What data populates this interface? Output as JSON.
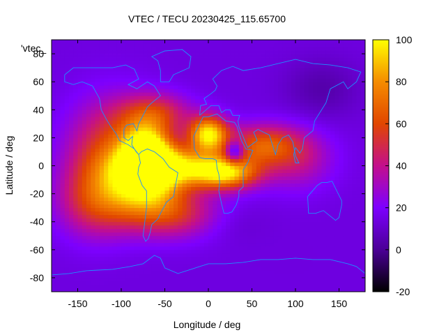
{
  "chart_data": {
    "type": "heatmap",
    "title": "VTEC / TECU 20230425_115.65700",
    "series_label": "'vtec_",
    "xlabel": "Longitude / deg",
    "ylabel": "Latitude / deg",
    "xlim": [
      -180,
      180
    ],
    "ylim": [
      -90,
      90
    ],
    "x_ticks": [
      -150,
      -100,
      -50,
      0,
      50,
      100,
      150
    ],
    "y_ticks": [
      -80,
      -60,
      -40,
      -20,
      0,
      20,
      40,
      60,
      80
    ],
    "x_tick_labels": [
      "-150",
      "-100",
      "-50",
      "0",
      "50",
      "100",
      "150"
    ],
    "y_tick_labels": [
      "-80",
      "-60",
      "-40",
      "-20",
      "0",
      "20",
      "40",
      "60",
      "80"
    ],
    "colorbar": {
      "range": [
        -20,
        100
      ],
      "ticks": [
        -20,
        0,
        20,
        40,
        60,
        80,
        100
      ],
      "tick_labels": [
        "-20",
        "0",
        "20",
        "40",
        "60",
        "80",
        "100"
      ],
      "palette": [
        "#000000",
        "#4b0096",
        "#7d00ff",
        "#c30f8c",
        "#e14600",
        "#f58c00",
        "#ffff00"
      ]
    },
    "background_value": 14,
    "grid": false,
    "vtec_features": [
      {
        "lon": 0,
        "lat": 23,
        "amplitude": 80,
        "sigma_lon": 16,
        "sigma_lat": 9
      },
      {
        "lon": -70,
        "lat": 12,
        "amplitude": 75,
        "sigma_lon": 20,
        "sigma_lat": 13
      },
      {
        "lon": -70,
        "lat": -15,
        "amplitude": 60,
        "sigma_lon": 30,
        "sigma_lat": 14
      },
      {
        "lon": -40,
        "lat": 0,
        "amplitude": 65,
        "sigma_lon": 40,
        "sigma_lat": 10
      },
      {
        "lon": 20,
        "lat": -5,
        "amplitude": 72,
        "sigma_lon": 26,
        "sigma_lat": 8
      },
      {
        "lon": -110,
        "lat": 10,
        "amplitude": 45,
        "sigma_lon": 35,
        "sigma_lat": 25
      },
      {
        "lon": -130,
        "lat": -25,
        "amplitude": 35,
        "sigma_lon": 30,
        "sigma_lat": 18
      },
      {
        "lon": 60,
        "lat": 15,
        "amplitude": 45,
        "sigma_lon": 30,
        "sigma_lat": 10
      },
      {
        "lon": -60,
        "lat": 38,
        "amplitude": 35,
        "sigma_lon": 28,
        "sigma_lat": 10
      },
      {
        "lon": -40,
        "lat": -35,
        "amplitude": 35,
        "sigma_lon": 40,
        "sigma_lat": 12
      },
      {
        "lon": 100,
        "lat": 5,
        "amplitude": 25,
        "sigma_lon": 30,
        "sigma_lat": 15
      },
      {
        "lon": 30,
        "lat": 10,
        "amplitude": -45,
        "sigma_lon": 8,
        "sigma_lat": 6
      },
      {
        "lon": 130,
        "lat": 55,
        "amplitude": -10,
        "sigma_lon": 30,
        "sigma_lat": 15
      },
      {
        "lon": 20,
        "lat": -40,
        "amplitude": -6,
        "sigma_lon": 30,
        "sigma_lat": 10
      }
    ],
    "coastlines": [
      {
        "name": "north-america",
        "points": [
          [
            -165,
            65
          ],
          [
            -155,
            70
          ],
          [
            -140,
            70
          ],
          [
            -125,
            70
          ],
          [
            -110,
            70
          ],
          [
            -95,
            72
          ],
          [
            -85,
            69
          ],
          [
            -80,
            62
          ],
          [
            -92,
            58
          ],
          [
            -82,
            55
          ],
          [
            -70,
            60
          ],
          [
            -62,
            57
          ],
          [
            -55,
            50
          ],
          [
            -65,
            45
          ],
          [
            -70,
            42
          ],
          [
            -75,
            36
          ],
          [
            -80,
            30
          ],
          [
            -82,
            25
          ],
          [
            -86,
            30
          ],
          [
            -94,
            29
          ],
          [
            -97,
            26
          ],
          [
            -97,
            20
          ],
          [
            -92,
            18
          ],
          [
            -87,
            21
          ],
          [
            -88,
            15
          ],
          [
            -83,
            10
          ],
          [
            -80,
            8
          ],
          [
            -85,
            12
          ],
          [
            -92,
            15
          ],
          [
            -102,
            18
          ],
          [
            -106,
            23
          ],
          [
            -112,
            28
          ],
          [
            -117,
            33
          ],
          [
            -123,
            40
          ],
          [
            -125,
            48
          ],
          [
            -133,
            57
          ],
          [
            -145,
            60
          ],
          [
            -155,
            58
          ],
          [
            -165,
            60
          ],
          [
            -165,
            65
          ]
        ]
      },
      {
        "name": "south-america",
        "points": [
          [
            -80,
            8
          ],
          [
            -77,
            10
          ],
          [
            -70,
            12
          ],
          [
            -62,
            10
          ],
          [
            -52,
            5
          ],
          [
            -45,
            -1
          ],
          [
            -35,
            -5
          ],
          [
            -38,
            -15
          ],
          [
            -40,
            -22
          ],
          [
            -48,
            -26
          ],
          [
            -55,
            -34
          ],
          [
            -58,
            -38
          ],
          [
            -65,
            -42
          ],
          [
            -67,
            -48
          ],
          [
            -69,
            -52
          ],
          [
            -72,
            -54
          ],
          [
            -75,
            -50
          ],
          [
            -73,
            -40
          ],
          [
            -71,
            -30
          ],
          [
            -71,
            -18
          ],
          [
            -76,
            -14
          ],
          [
            -81,
            -6
          ],
          [
            -80,
            -1
          ],
          [
            -78,
            2
          ],
          [
            -80,
            8
          ]
        ]
      },
      {
        "name": "greenland",
        "points": [
          [
            -55,
            60
          ],
          [
            -45,
            60
          ],
          [
            -40,
            65
          ],
          [
            -22,
            70
          ],
          [
            -20,
            78
          ],
          [
            -30,
            83
          ],
          [
            -50,
            82
          ],
          [
            -65,
            78
          ],
          [
            -58,
            75
          ],
          [
            -55,
            68
          ],
          [
            -55,
            60
          ]
        ]
      },
      {
        "name": "africa",
        "points": [
          [
            -17,
            21
          ],
          [
            -16,
            12
          ],
          [
            -10,
            6
          ],
          [
            -4,
            5
          ],
          [
            5,
            5
          ],
          [
            9,
            4
          ],
          [
            10,
            -2
          ],
          [
            12,
            -6
          ],
          [
            13,
            -12
          ],
          [
            12,
            -18
          ],
          [
            15,
            -27
          ],
          [
            18,
            -34
          ],
          [
            22,
            -34
          ],
          [
            27,
            -33
          ],
          [
            32,
            -28
          ],
          [
            35,
            -22
          ],
          [
            35,
            -18
          ],
          [
            40,
            -15
          ],
          [
            40,
            -10
          ],
          [
            40,
            -3
          ],
          [
            45,
            2
          ],
          [
            51,
            11
          ],
          [
            43,
            12
          ],
          [
            38,
            18
          ],
          [
            33,
            28
          ],
          [
            30,
            31
          ],
          [
            20,
            32
          ],
          [
            10,
            37
          ],
          [
            0,
            35
          ],
          [
            -6,
            35
          ],
          [
            -10,
            30
          ],
          [
            -17,
            21
          ]
        ]
      },
      {
        "name": "eurasia",
        "points": [
          [
            -10,
            36
          ],
          [
            -9,
            43
          ],
          [
            -2,
            44
          ],
          [
            -5,
            48
          ],
          [
            2,
            51
          ],
          [
            8,
            54
          ],
          [
            10,
            57
          ],
          [
            5,
            62
          ],
          [
            15,
            68
          ],
          [
            28,
            71
          ],
          [
            40,
            68
          ],
          [
            60,
            70
          ],
          [
            80,
            73
          ],
          [
            100,
            76
          ],
          [
            120,
            73
          ],
          [
            140,
            72
          ],
          [
            160,
            70
          ],
          [
            175,
            67
          ],
          [
            170,
            60
          ],
          [
            160,
            55
          ],
          [
            155,
            60
          ],
          [
            140,
            55
          ],
          [
            135,
            45
          ],
          [
            128,
            38
          ],
          [
            122,
            32
          ],
          [
            120,
            25
          ],
          [
            110,
            20
          ],
          [
            108,
            12
          ],
          [
            105,
            9
          ],
          [
            100,
            13
          ],
          [
            98,
            8
          ],
          [
            100,
            2
          ],
          [
            104,
            2
          ],
          [
            100,
            7
          ],
          [
            97,
            17
          ],
          [
            92,
            22
          ],
          [
            85,
            20
          ],
          [
            80,
            15
          ],
          [
            77,
            8
          ],
          [
            73,
            16
          ],
          [
            70,
            22
          ],
          [
            60,
            25
          ],
          [
            57,
            26
          ],
          [
            52,
            24
          ],
          [
            56,
            18
          ],
          [
            45,
            13
          ],
          [
            43,
            16
          ],
          [
            35,
            28
          ],
          [
            34,
            32
          ],
          [
            36,
            36
          ],
          [
            28,
            36
          ],
          [
            25,
            40
          ],
          [
            20,
            40
          ],
          [
            15,
            38
          ],
          [
            12,
            43
          ],
          [
            3,
            43
          ],
          [
            -10,
            36
          ]
        ]
      },
      {
        "name": "australia",
        "points": [
          [
            114,
            -22
          ],
          [
            115,
            -34
          ],
          [
            123,
            -34
          ],
          [
            132,
            -32
          ],
          [
            138,
            -35
          ],
          [
            146,
            -39
          ],
          [
            150,
            -37
          ],
          [
            153,
            -28
          ],
          [
            153,
            -25
          ],
          [
            145,
            -15
          ],
          [
            142,
            -11
          ],
          [
            136,
            -12
          ],
          [
            130,
            -12
          ],
          [
            125,
            -14
          ],
          [
            114,
            -22
          ]
        ]
      },
      {
        "name": "antarctica",
        "points": [
          [
            -180,
            -78
          ],
          [
            -160,
            -77
          ],
          [
            -140,
            -75
          ],
          [
            -110,
            -74
          ],
          [
            -90,
            -72
          ],
          [
            -75,
            -70
          ],
          [
            -62,
            -64
          ],
          [
            -55,
            -66
          ],
          [
            -50,
            -73
          ],
          [
            -35,
            -77
          ],
          [
            -20,
            -74
          ],
          [
            0,
            -70
          ],
          [
            20,
            -70
          ],
          [
            40,
            -69
          ],
          [
            60,
            -67
          ],
          [
            80,
            -67
          ],
          [
            100,
            -66
          ],
          [
            120,
            -67
          ],
          [
            140,
            -67
          ],
          [
            160,
            -70
          ],
          [
            170,
            -72
          ],
          [
            180,
            -77
          ]
        ]
      }
    ]
  }
}
